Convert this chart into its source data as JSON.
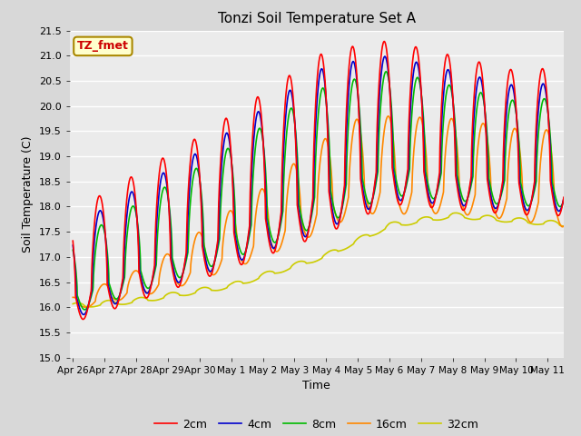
{
  "title": "Tonzi Soil Temperature Set A",
  "xlabel": "Time",
  "ylabel": "Soil Temperature (C)",
  "ylim": [
    15.0,
    21.5
  ],
  "legend_labels": [
    "2cm",
    "4cm",
    "8cm",
    "16cm",
    "32cm"
  ],
  "legend_colors": [
    "#ff0000",
    "#0000cc",
    "#00bb00",
    "#ff8800",
    "#cccc00"
  ],
  "annotation_text": "TZ_fmet",
  "annotation_fg": "#cc0000",
  "annotation_bg": "#ffffcc",
  "tick_labels": [
    "Apr 26",
    "Apr 27",
    "Apr 28",
    "Apr 29",
    "Apr 30",
    "May 1",
    "May 2",
    "May 3",
    "May 4",
    "May 5",
    "May 6",
    "May 7",
    "May 8",
    "May 9",
    "May 10",
    "May 11"
  ],
  "linewidth": 1.2,
  "fig_bg": "#d8d8d8",
  "plot_bg": "#ebebeb"
}
